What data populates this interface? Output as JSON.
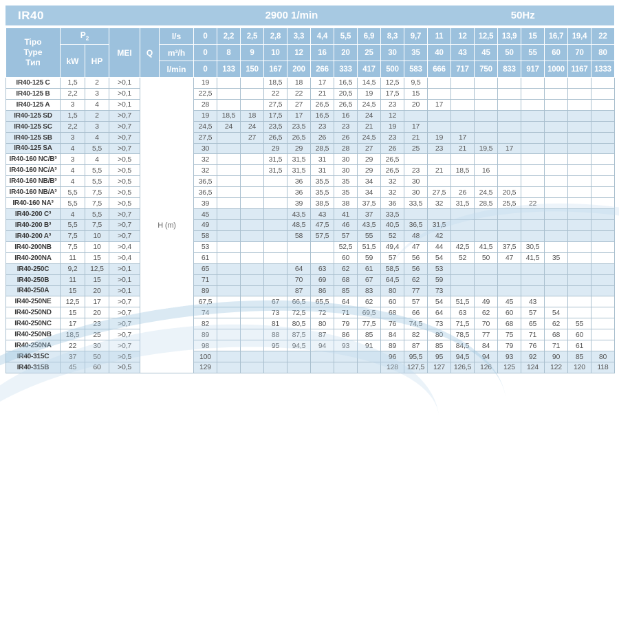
{
  "titlebar": {
    "series": "IR40",
    "speed": "2900 1/min",
    "frequency": "50Hz"
  },
  "columns": {
    "type_lines": [
      "Tipo",
      "Type",
      "Тип"
    ],
    "p2_label": "P",
    "p2_sub": "2",
    "kw_label": "kW",
    "hp_label": "HP",
    "mei_label": "MEI",
    "q_label": "Q",
    "body_unit": "H (m)"
  },
  "flow_header": {
    "rows": [
      {
        "label": "l/s",
        "values": [
          "0",
          "2,2",
          "2,5",
          "2,8",
          "3,3",
          "4,4",
          "5,5",
          "6,9",
          "8,3",
          "9,7",
          "11",
          "12",
          "12,5",
          "13,9",
          "15",
          "16,7",
          "19,4",
          "22"
        ]
      },
      {
        "label": "m³/h",
        "values": [
          "0",
          "8",
          "9",
          "10",
          "12",
          "16",
          "20",
          "25",
          "30",
          "35",
          "40",
          "43",
          "45",
          "50",
          "55",
          "60",
          "70",
          "80"
        ]
      },
      {
        "label": "l/min",
        "values": [
          "0",
          "133",
          "150",
          "167",
          "200",
          "266",
          "333",
          "417",
          "500",
          "583",
          "666",
          "717",
          "750",
          "833",
          "917",
          "1000",
          "1167",
          "1333"
        ]
      }
    ]
  },
  "rows": [
    {
      "model": "IR40-125 C",
      "kw": "1,5",
      "hp": "2",
      "mei": ">0,1",
      "tint": false,
      "h": [
        "19",
        "",
        "",
        "18,5",
        "18",
        "17",
        "16,5",
        "14,5",
        "12,5",
        "9,5",
        "",
        "",
        "",
        "",
        "",
        "",
        "",
        ""
      ]
    },
    {
      "model": "IR40-125 B",
      "kw": "2,2",
      "hp": "3",
      "mei": ">0,1",
      "tint": false,
      "h": [
        "22,5",
        "",
        "",
        "22",
        "22",
        "21",
        "20,5",
        "19",
        "17,5",
        "15",
        "",
        "",
        "",
        "",
        "",
        "",
        "",
        ""
      ]
    },
    {
      "model": "IR40-125 A",
      "kw": "3",
      "hp": "4",
      "mei": ">0,1",
      "tint": false,
      "h": [
        "28",
        "",
        "",
        "27,5",
        "27",
        "26,5",
        "26,5",
        "24,5",
        "23",
        "20",
        "17",
        "",
        "",
        "",
        "",
        "",
        "",
        ""
      ]
    },
    {
      "model": "IR40-125 SD",
      "kw": "1,5",
      "hp": "2",
      "mei": ">0,7",
      "tint": true,
      "h": [
        "19",
        "18,5",
        "18",
        "17,5",
        "17",
        "16,5",
        "16",
        "24",
        "12",
        "",
        "",
        "",
        "",
        "",
        "",
        "",
        "",
        ""
      ]
    },
    {
      "model": "IR40-125 SC",
      "kw": "2,2",
      "hp": "3",
      "mei": ">0,7",
      "tint": true,
      "h": [
        "24,5",
        "24",
        "24",
        "23,5",
        "23,5",
        "23",
        "23",
        "21",
        "19",
        "17",
        "",
        "",
        "",
        "",
        "",
        "",
        "",
        ""
      ]
    },
    {
      "model": "IR40-125 SB",
      "kw": "3",
      "hp": "4",
      "mei": ">0,7",
      "tint": true,
      "h": [
        "27,5",
        "",
        "27",
        "26,5",
        "26,5",
        "26",
        "26",
        "24,5",
        "23",
        "21",
        "19",
        "17",
        "",
        "",
        "",
        "",
        "",
        ""
      ]
    },
    {
      "model": "IR40-125 SA",
      "kw": "4",
      "hp": "5,5",
      "mei": ">0,7",
      "tint": true,
      "h": [
        "30",
        "",
        "",
        "29",
        "29",
        "28,5",
        "28",
        "27",
        "26",
        "25",
        "23",
        "21",
        "19,5",
        "17",
        "",
        "",
        "",
        ""
      ]
    },
    {
      "model": "IR40-160 NC/B³",
      "kw": "3",
      "hp": "4",
      "mei": ">0,5",
      "tint": false,
      "h": [
        "32",
        "",
        "",
        "31,5",
        "31,5",
        "31",
        "30",
        "29",
        "26,5",
        "",
        "",
        "",
        "",
        "",
        "",
        "",
        "",
        ""
      ]
    },
    {
      "model": "IR40-160 NC/A³",
      "kw": "4",
      "hp": "5,5",
      "mei": ">0,5",
      "tint": false,
      "h": [
        "32",
        "",
        "",
        "31,5",
        "31,5",
        "31",
        "30",
        "29",
        "26,5",
        "23",
        "21",
        "18,5",
        "16",
        "",
        "",
        "",
        "",
        ""
      ]
    },
    {
      "model": "IR40-160 NB/B³",
      "kw": "4",
      "hp": "5,5",
      "mei": ">0,5",
      "tint": false,
      "h": [
        "36,5",
        "",
        "",
        "",
        "36",
        "35,5",
        "35",
        "34",
        "32",
        "30",
        "",
        "",
        "",
        "",
        "",
        "",
        "",
        ""
      ]
    },
    {
      "model": "IR40-160 NB/A³",
      "kw": "5,5",
      "hp": "7,5",
      "mei": ">0,5",
      "tint": false,
      "h": [
        "36,5",
        "",
        "",
        "",
        "36",
        "35,5",
        "35",
        "34",
        "32",
        "30",
        "27,5",
        "26",
        "24,5",
        "20,5",
        "",
        "",
        "",
        ""
      ]
    },
    {
      "model": "IR40-160 NA³",
      "kw": "5,5",
      "hp": "7,5",
      "mei": ">0,5",
      "tint": false,
      "h": [
        "39",
        "",
        "",
        "",
        "39",
        "38,5",
        "38",
        "37,5",
        "36",
        "33,5",
        "32",
        "31,5",
        "28,5",
        "25,5",
        "22",
        "",
        "",
        ""
      ]
    },
    {
      "model": "IR40-200 C³",
      "kw": "4",
      "hp": "5,5",
      "mei": ">0,7",
      "tint": true,
      "h": [
        "45",
        "",
        "",
        "",
        "43,5",
        "43",
        "41",
        "37",
        "33,5",
        "",
        "",
        "",
        "",
        "",
        "",
        "",
        "",
        ""
      ]
    },
    {
      "model": "IR40-200 B³",
      "kw": "5,5",
      "hp": "7,5",
      "mei": ">0,7",
      "tint": true,
      "h": [
        "49",
        "",
        "",
        "",
        "48,5",
        "47,5",
        "46",
        "43,5",
        "40,5",
        "36,5",
        "31,5",
        "",
        "",
        "",
        "",
        "",
        "",
        ""
      ]
    },
    {
      "model": "IR40-200 A³",
      "kw": "7,5",
      "hp": "10",
      "mei": ">0,7",
      "tint": true,
      "h": [
        "58",
        "",
        "",
        "",
        "58",
        "57,5",
        "57",
        "55",
        "52",
        "48",
        "42",
        "",
        "",
        "",
        "",
        "",
        "",
        ""
      ]
    },
    {
      "model": "IR40-200NB",
      "kw": "7,5",
      "hp": "10",
      "mei": ">0,4",
      "tint": false,
      "h": [
        "53",
        "",
        "",
        "",
        "",
        "",
        "52,5",
        "51,5",
        "49,4",
        "47",
        "44",
        "42,5",
        "41,5",
        "37,5",
        "30,5",
        "",
        "",
        ""
      ]
    },
    {
      "model": "IR40-200NA",
      "kw": "11",
      "hp": "15",
      "mei": ">0,4",
      "tint": false,
      "h": [
        "61",
        "",
        "",
        "",
        "",
        "",
        "60",
        "59",
        "57",
        "56",
        "54",
        "52",
        "50",
        "47",
        "41,5",
        "35",
        "",
        ""
      ]
    },
    {
      "model": "IR40-250C",
      "kw": "9,2",
      "hp": "12,5",
      "mei": ">0,1",
      "tint": true,
      "h": [
        "65",
        "",
        "",
        "",
        "64",
        "63",
        "62",
        "61",
        "58,5",
        "56",
        "53",
        "",
        "",
        "",
        "",
        "",
        "",
        ""
      ]
    },
    {
      "model": "IR40-250B",
      "kw": "11",
      "hp": "15",
      "mei": ">0,1",
      "tint": true,
      "h": [
        "71",
        "",
        "",
        "",
        "70",
        "69",
        "68",
        "67",
        "64,5",
        "62",
        "59",
        "",
        "",
        "",
        "",
        "",
        "",
        ""
      ]
    },
    {
      "model": "IR40-250A",
      "kw": "15",
      "hp": "20",
      "mei": ">0,1",
      "tint": true,
      "h": [
        "89",
        "",
        "",
        "",
        "87",
        "86",
        "85",
        "83",
        "80",
        "77",
        "73",
        "",
        "",
        "",
        "",
        "",
        "",
        ""
      ]
    },
    {
      "model": "IR40-250NE",
      "kw": "12,5",
      "hp": "17",
      "mei": ">0,7",
      "tint": false,
      "h": [
        "67,5",
        "",
        "",
        "67",
        "66,5",
        "65,5",
        "64",
        "62",
        "60",
        "57",
        "54",
        "51,5",
        "49",
        "45",
        "43",
        "",
        "",
        ""
      ]
    },
    {
      "model": "IR40-250ND",
      "kw": "15",
      "hp": "20",
      "mei": ">0,7",
      "tint": false,
      "h": [
        "74",
        "",
        "",
        "73",
        "72,5",
        "72",
        "71",
        "69,5",
        "68",
        "66",
        "64",
        "63",
        "62",
        "60",
        "57",
        "54",
        "",
        ""
      ]
    },
    {
      "model": "IR40-250NC",
      "kw": "17",
      "hp": "23",
      "mei": ">0,7",
      "tint": false,
      "h": [
        "82",
        "",
        "",
        "81",
        "80,5",
        "80",
        "79",
        "77,5",
        "76",
        "74,5",
        "73",
        "71,5",
        "70",
        "68",
        "65",
        "62",
        "55",
        ""
      ]
    },
    {
      "model": "IR40-250NB",
      "kw": "18,5",
      "hp": "25",
      "mei": ">0,7",
      "tint": false,
      "h": [
        "89",
        "",
        "",
        "88",
        "87,5",
        "87",
        "86",
        "85",
        "84",
        "82",
        "80",
        "78,5",
        "77",
        "75",
        "71",
        "68",
        "60",
        ""
      ]
    },
    {
      "model": "IR40-250NA",
      "kw": "22",
      "hp": "30",
      "mei": ">0,7",
      "tint": false,
      "h": [
        "98",
        "",
        "",
        "95",
        "94,5",
        "94",
        "93",
        "91",
        "89",
        "87",
        "85",
        "84,5",
        "84",
        "79",
        "76",
        "71",
        "61",
        ""
      ]
    },
    {
      "model": "IR40-315C",
      "kw": "37",
      "hp": "50",
      "mei": ">0,5",
      "tint": true,
      "h": [
        "100",
        "",
        "",
        "",
        "",
        "",
        "",
        "",
        "96",
        "95,5",
        "95",
        "94,5",
        "94",
        "93",
        "92",
        "90",
        "85",
        "80"
      ]
    },
    {
      "model": "IR40-315B",
      "kw": "45",
      "hp": "60",
      "mei": ">0,5",
      "tint": true,
      "h": [
        "129",
        "",
        "",
        "",
        "",
        "",
        "",
        "",
        "128",
        "127,5",
        "127",
        "126,5",
        "126",
        "125",
        "124",
        "122",
        "120",
        "118"
      ]
    }
  ],
  "colors": {
    "titlebar-bg": "#a7c9e2",
    "header-bg": "#9cc1dd",
    "header-text": "#ffffff",
    "row-tint": "#dceaf4",
    "grid-border": "#a9bfce",
    "body-text": "#555555",
    "model-text": "#3a3a3a"
  }
}
